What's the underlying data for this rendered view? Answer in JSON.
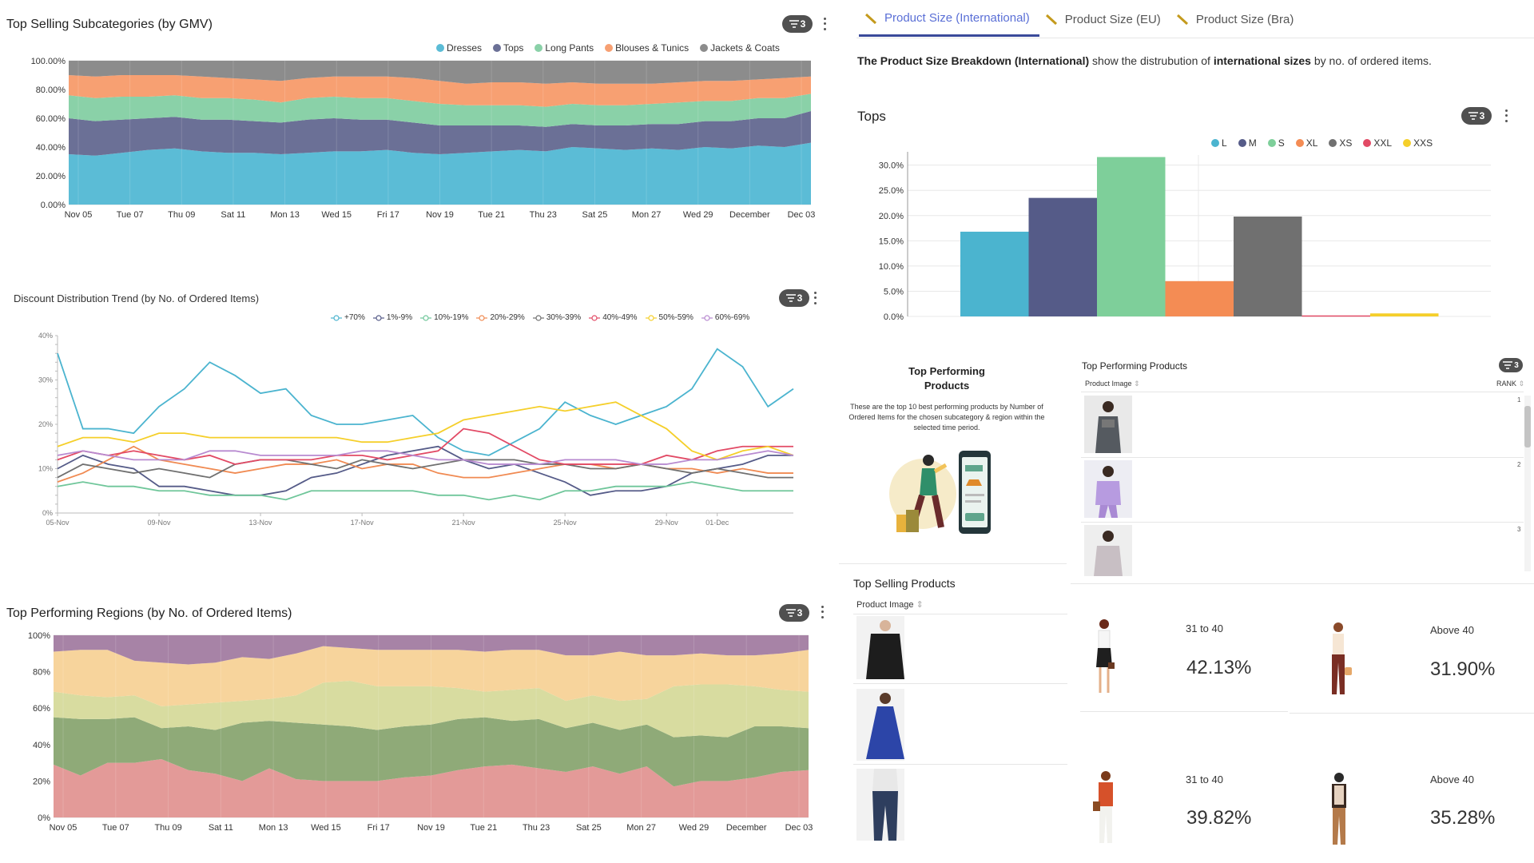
{
  "colors": {
    "dresses": "#5bbcd6",
    "tops": "#6b7096",
    "long_pants": "#8ad1a8",
    "blouses": "#f7a072",
    "jackets": "#8c8c8c",
    "badge": "#505050",
    "tab_active": "#5a6fd6"
  },
  "panels": {
    "subcategories": {
      "title": "Top Selling Subcategories (by GMV)",
      "filter_count": "3"
    },
    "discount": {
      "title": "Discount Distribution Trend (by No. of Ordered Items)",
      "filter_count": "3"
    },
    "regions": {
      "title": "Top Performing Regions (by No. of Ordered Items)",
      "filter_count": "3"
    },
    "size": {
      "tabs": [
        {
          "label": "Product Size (International)",
          "icon": "ruler-icon"
        },
        {
          "label": "Product Size (EU)",
          "icon": "ruler-icon"
        },
        {
          "label": "Product Size (Bra)",
          "icon": "ruler-icon"
        }
      ],
      "desc_parts": [
        "The Product Size Breakdown (International)",
        " show the distrubution of ",
        "international sizes",
        " by no. of ordered items."
      ],
      "chart_title": "Tops",
      "filter_count": "3"
    },
    "top_performing_info": {
      "title_line1": "Top Performing",
      "title_line2": "Products",
      "desc": "These are the top 10 best performing products by Number of Ordered Items for the chosen subcategory & region within the selected time period."
    },
    "top_performing_table": {
      "title": "Top Performing Products",
      "col_image": "Product Image",
      "col_rank": "RANK",
      "filter_count": "3",
      "ranks": [
        "1",
        "2",
        "3"
      ]
    },
    "top_selling": {
      "title": "Top Selling Products",
      "col_image": "Product Image"
    },
    "kpis": [
      {
        "label": "31 to 40",
        "value": "42.13%"
      },
      {
        "label": "Above 40",
        "value": "31.90%"
      },
      {
        "label": "31 to 40",
        "value": "39.82%"
      },
      {
        "label": "Above 40",
        "value": "35.28%"
      }
    ]
  },
  "chart_data": [
    {
      "id": "subcategories",
      "type": "area",
      "stacked": "percent",
      "x_ticks": [
        "Nov 05",
        "Tue 07",
        "Thu 09",
        "Sat 11",
        "Mon 13",
        "Wed 15",
        "Fri 17",
        "Nov 19",
        "Tue 21",
        "Thu 23",
        "Sat 25",
        "Mon 27",
        "Wed 29",
        "December",
        "Dec 03"
      ],
      "y_ticks": [
        "0.00%",
        "20.00%",
        "40.00%",
        "60.00%",
        "80.00%",
        "100.00%"
      ],
      "ylim": [
        0,
        100
      ],
      "legend_position": "top-right",
      "series": [
        {
          "name": "Dresses",
          "color": "#5bbcd6",
          "values": [
            35,
            34,
            36,
            38,
            39,
            37,
            36,
            36,
            35,
            36,
            37,
            37,
            38,
            36,
            35,
            36,
            37,
            38,
            37,
            40,
            39,
            38,
            39,
            38,
            40,
            39,
            41,
            40,
            43
          ]
        },
        {
          "name": "Tops",
          "color": "#6b7096",
          "values": [
            25,
            24,
            23,
            22,
            22,
            22,
            23,
            22,
            22,
            23,
            23,
            22,
            21,
            21,
            20,
            19,
            18,
            17,
            17,
            16,
            16,
            17,
            17,
            18,
            18,
            19,
            19,
            20,
            22
          ]
        },
        {
          "name": "Long Pants",
          "color": "#8ad1a8",
          "values": [
            16,
            16,
            16,
            15,
            15,
            15,
            15,
            15,
            14,
            15,
            15,
            15,
            15,
            15,
            15,
            14,
            14,
            14,
            14,
            14,
            14,
            14,
            14,
            15,
            14,
            14,
            14,
            14,
            12
          ]
        },
        {
          "name": "Blouses & Tunics",
          "color": "#f7a072",
          "values": [
            14,
            15,
            15,
            15,
            14,
            15,
            14,
            14,
            15,
            14,
            14,
            15,
            15,
            16,
            16,
            15,
            16,
            16,
            16,
            15,
            15,
            15,
            14,
            14,
            14,
            14,
            13,
            14,
            12
          ]
        },
        {
          "name": "Jackets & Coats",
          "color": "#8c8c8c",
          "values": [
            10,
            11,
            10,
            10,
            10,
            11,
            12,
            13,
            14,
            12,
            11,
            11,
            11,
            12,
            14,
            16,
            15,
            15,
            16,
            15,
            16,
            16,
            16,
            15,
            14,
            14,
            13,
            12,
            11
          ]
        }
      ]
    },
    {
      "id": "discount",
      "type": "line",
      "x_ticks": [
        "05-Nov",
        "09-Nov",
        "13-Nov",
        "17-Nov",
        "21-Nov",
        "25-Nov",
        "29-Nov",
        "01-Dec"
      ],
      "y_ticks": [
        "0%",
        "10%",
        "20%",
        "30%",
        "40%"
      ],
      "ylim": [
        0,
        40
      ],
      "legend_position": "top-right",
      "series": [
        {
          "name": "+70%",
          "color": "#4bb4cf",
          "values": [
            36,
            19,
            19,
            18,
            24,
            28,
            34,
            31,
            27,
            28,
            22,
            20,
            20,
            21,
            22,
            17,
            14,
            13,
            16,
            19,
            25,
            22,
            20,
            22,
            24,
            28,
            37,
            33,
            24,
            28
          ]
        },
        {
          "name": "1%-9%",
          "color": "#555b88",
          "values": [
            10,
            13,
            11,
            10,
            6,
            6,
            5,
            4,
            4,
            5,
            8,
            9,
            11,
            13,
            14,
            15,
            12,
            10,
            11,
            9,
            7,
            4,
            5,
            5,
            6,
            9,
            10,
            11,
            13,
            13
          ]
        },
        {
          "name": "10%-19%",
          "color": "#6fc69a",
          "values": [
            6,
            7,
            6,
            6,
            5,
            5,
            4,
            4,
            4,
            3,
            5,
            5,
            5,
            5,
            5,
            4,
            4,
            3,
            4,
            3,
            5,
            5,
            6,
            6,
            6,
            7,
            6,
            5,
            5,
            5
          ]
        },
        {
          "name": "20%-29%",
          "color": "#f08a52",
          "values": [
            7,
            9,
            12,
            15,
            12,
            11,
            10,
            9,
            10,
            11,
            11,
            12,
            10,
            11,
            11,
            9,
            8,
            8,
            9,
            10,
            11,
            11,
            10,
            11,
            10,
            10,
            9,
            10,
            9,
            9
          ]
        },
        {
          "name": "30%-39%",
          "color": "#707070",
          "values": [
            8,
            11,
            10,
            9,
            10,
            9,
            8,
            11,
            12,
            12,
            11,
            10,
            12,
            11,
            10,
            11,
            12,
            12,
            12,
            11,
            11,
            10,
            10,
            11,
            10,
            9,
            10,
            9,
            8,
            8
          ]
        },
        {
          "name": "40%-49%",
          "color": "#e24a65",
          "values": [
            12,
            14,
            13,
            14,
            13,
            12,
            13,
            11,
            12,
            12,
            12,
            13,
            13,
            12,
            13,
            14,
            19,
            18,
            15,
            12,
            11,
            11,
            11,
            11,
            13,
            12,
            14,
            15,
            15,
            15
          ]
        },
        {
          "name": "50%-59%",
          "color": "#f5cf2a",
          "values": [
            15,
            17,
            17,
            16,
            18,
            18,
            17,
            17,
            17,
            17,
            17,
            17,
            16,
            16,
            17,
            18,
            21,
            22,
            23,
            24,
            23,
            24,
            25,
            22,
            19,
            14,
            12,
            14,
            15,
            13
          ]
        },
        {
          "name": "60%-69%",
          "color": "#b88ad0",
          "values": [
            13,
            14,
            13,
            12,
            12,
            12,
            14,
            14,
            13,
            13,
            13,
            13,
            14,
            14,
            13,
            12,
            12,
            11,
            11,
            11,
            12,
            12,
            12,
            11,
            11,
            12,
            12,
            13,
            14,
            13
          ]
        }
      ]
    },
    {
      "id": "regions",
      "type": "area",
      "stacked": "percent",
      "x_ticks": [
        "Nov 05",
        "Tue 07",
        "Thu 09",
        "Sat 11",
        "Mon 13",
        "Wed 15",
        "Fri 17",
        "Nov 19",
        "Tue 21",
        "Thu 23",
        "Sat 25",
        "Mon 27",
        "Wed 29",
        "December",
        "Dec 03"
      ],
      "y_ticks": [
        "0%",
        "20%",
        "40%",
        "60%",
        "80%",
        "100%"
      ],
      "ylim": [
        0,
        100
      ],
      "series": [
        {
          "color": "#e39a98",
          "values": [
            29,
            23,
            30,
            30,
            32,
            26,
            24,
            20,
            27,
            21,
            20,
            20,
            20,
            22,
            23,
            26,
            28,
            29,
            27,
            25,
            28,
            24,
            28,
            17,
            20,
            20,
            22,
            25,
            26
          ]
        },
        {
          "color": "#8faa78",
          "values": [
            26,
            31,
            24,
            25,
            17,
            24,
            24,
            32,
            26,
            31,
            31,
            30,
            28,
            28,
            28,
            28,
            27,
            24,
            27,
            24,
            24,
            24,
            23,
            27,
            25,
            24,
            28,
            25,
            23
          ]
        },
        {
          "color": "#d8dca0",
          "values": [
            14,
            13,
            12,
            12,
            12,
            12,
            15,
            12,
            12,
            15,
            23,
            25,
            24,
            22,
            21,
            17,
            14,
            17,
            17,
            15,
            15,
            16,
            14,
            28,
            28,
            29,
            22,
            20,
            20
          ]
        },
        {
          "color": "#f7d49c",
          "values": [
            22,
            25,
            26,
            19,
            24,
            22,
            22,
            24,
            22,
            23,
            20,
            18,
            20,
            20,
            20,
            21,
            22,
            22,
            21,
            25,
            22,
            27,
            24,
            17,
            17,
            16,
            17,
            20,
            23
          ]
        },
        {
          "color": "#a783a6",
          "values": [
            9,
            8,
            8,
            14,
            15,
            16,
            15,
            12,
            13,
            10,
            6,
            7,
            8,
            8,
            8,
            8,
            9,
            8,
            8,
            11,
            11,
            9,
            11,
            11,
            10,
            11,
            11,
            10,
            8
          ]
        }
      ]
    },
    {
      "id": "sizes",
      "type": "bar",
      "title": "Tops",
      "categories": [
        "L",
        "M",
        "S",
        "XL",
        "XS",
        "XXL",
        "XXS"
      ],
      "values": [
        16.8,
        23.5,
        31.6,
        7.0,
        19.8,
        0.2,
        0.6
      ],
      "colors": [
        "#4bb4cf",
        "#555b88",
        "#7ecf9a",
        "#f48c54",
        "#707070",
        "#e24a65",
        "#f5cf2a"
      ],
      "y_ticks": [
        "0.0%",
        "5.0%",
        "10.0%",
        "15.0%",
        "20.0%",
        "25.0%",
        "30.0%"
      ],
      "ylim": [
        0,
        32
      ],
      "legend_position": "top-right"
    }
  ]
}
